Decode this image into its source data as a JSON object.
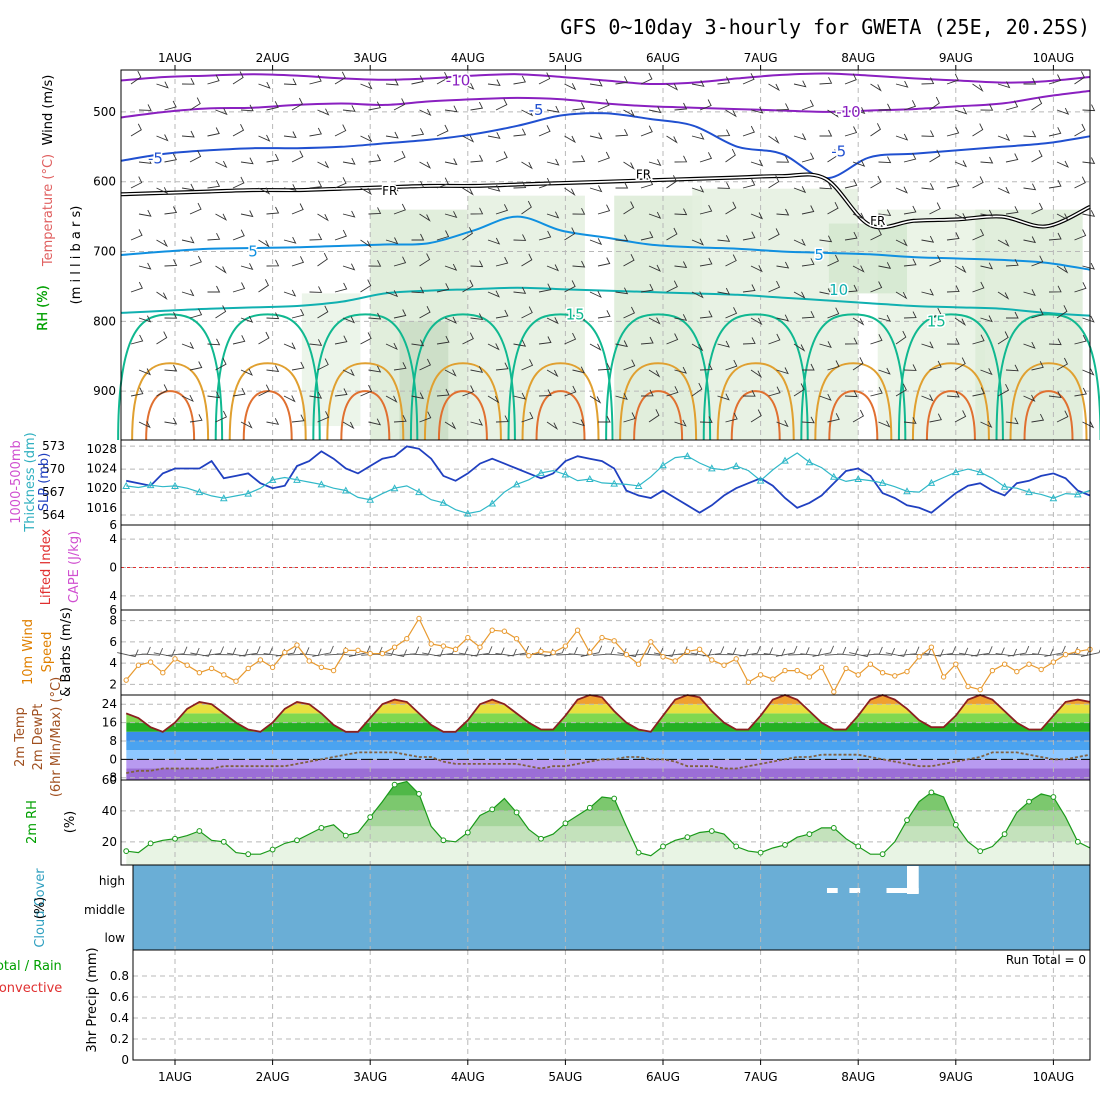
{
  "title": "GFS 0~10day 3-hourly for GWETA (25E, 20.25S)",
  "dates": [
    "1AUG",
    "2AUG",
    "3AUG",
    "4AUG",
    "5AUG",
    "6AUG",
    "7AUG",
    "8AUG",
    "9AUG",
    "10AUG"
  ],
  "panel_labels": {
    "upper": [
      {
        "text": "Wind (m/s)",
        "color": "#000000"
      },
      {
        "text": "Temperature (°C)",
        "color": "#e06060"
      },
      {
        "text": "(m i l l i b a r s)",
        "color": "#000000"
      },
      {
        "text": "RH (%)",
        "color": "#00a000"
      }
    ],
    "thickness": [
      {
        "text": "1000-500mb",
        "color": "#d050d0"
      },
      {
        "text": "Thickness (dm)",
        "color": "#30b0c0"
      },
      {
        "text": "SLP (mb)",
        "color": "#2040c0"
      }
    ],
    "cape": [
      {
        "text": "Lifted Index",
        "color": "#e03030"
      },
      {
        "text": "CAPE (J/kg)",
        "color": "#d050d0"
      }
    ],
    "wind10": [
      {
        "text": "10m Wind",
        "color": "#e08000"
      },
      {
        "text": "Speed",
        "color": "#e08000"
      },
      {
        "text": "& Barbs (m/s)",
        "color": "#000000"
      }
    ],
    "temp2m": [
      {
        "text": "2m Temp",
        "color": "#a05020"
      },
      {
        "text": "2m DewPt",
        "color": "#a05020"
      },
      {
        "text": "(6hr Min/Max) (°C)",
        "color": "#a05020"
      }
    ],
    "rh2m": [
      {
        "text": "2m RH",
        "color": "#00a000"
      },
      {
        "text": "(%)",
        "color": "#000000"
      }
    ],
    "cloud": [
      {
        "text": "Cloud Cover",
        "color": "#30a0c0"
      },
      {
        "text": "(%)",
        "color": "#000000"
      }
    ],
    "precip": [
      {
        "text": "Total / Rain",
        "color": "#00a000"
      },
      {
        "text": "Convective",
        "color": "#e03030"
      },
      {
        "text": "3hr Precip (mm)",
        "color": "#000000"
      }
    ]
  },
  "run_total_label": "Run Total = 0",
  "chart_data": [
    {
      "type": "contour",
      "name": "upper-air",
      "y_axis": "pressure (mb)",
      "yticks": [
        500,
        600,
        700,
        800,
        900
      ],
      "ylim": [
        440,
        970
      ],
      "contour_labels": [
        {
          "text": "-10",
          "day": 3.9,
          "p": 455,
          "color": "#8a20c0"
        },
        {
          "text": "-10",
          "day": 7.9,
          "p": 500,
          "color": "#8a20c0"
        },
        {
          "text": "-5",
          "day": 4.7,
          "p": 497,
          "color": "#2050d0"
        },
        {
          "text": "-5",
          "day": 0.8,
          "p": 567,
          "color": "#2050d0"
        },
        {
          "text": "-5",
          "day": 7.8,
          "p": 557,
          "color": "#2050d0"
        },
        {
          "text": "FR",
          "day": 3.2,
          "p": 612,
          "color": "#000000"
        },
        {
          "text": "FR",
          "day": 5.8,
          "p": 588,
          "color": "#000000"
        },
        {
          "text": "FR",
          "day": 8.2,
          "p": 655,
          "color": "#000000"
        },
        {
          "text": "5",
          "day": 1.8,
          "p": 700,
          "color": "#1090e0"
        },
        {
          "text": "5",
          "day": 7.6,
          "p": 705,
          "color": "#1090e0"
        },
        {
          "text": "10",
          "day": 7.8,
          "p": 755,
          "color": "#10b0b0"
        },
        {
          "text": "15",
          "day": 5.1,
          "p": 790,
          "color": "#10b890"
        },
        {
          "text": "15",
          "day": 8.8,
          "p": 800,
          "color": "#10b890"
        }
      ],
      "isotherms": [
        {
          "temp": -10,
          "color": "#8a20c0",
          "p": [
            455,
            450,
            448,
            446,
            448,
            452,
            454,
            452,
            448,
            446,
            450,
            455,
            460,
            458,
            452,
            447,
            445,
            448,
            452,
            455,
            458,
            456,
            450
          ]
        },
        {
          "temp": -10,
          "color": "#8a20c0",
          "p": [
            508,
            500,
            495,
            494,
            490,
            488,
            490,
            485,
            482,
            480,
            482,
            488,
            492,
            494,
            496,
            498,
            500,
            498,
            496,
            492,
            488,
            478,
            470
          ]
        },
        {
          "temp": -5,
          "color": "#2050d0",
          "p": [
            570,
            560,
            555,
            552,
            552,
            550,
            545,
            540,
            532,
            520,
            505,
            502,
            510,
            520,
            550,
            560,
            595,
            565,
            560,
            555,
            550,
            545,
            535
          ]
        },
        {
          "temp": 0,
          "color": "#000000",
          "p": [
            618,
            616,
            614,
            612,
            612,
            610,
            608,
            606,
            606,
            604,
            602,
            600,
            598,
            596,
            594,
            592,
            596,
            662,
            656,
            654,
            650,
            664,
            636
          ]
        },
        {
          "temp": 5,
          "color": "#1090e0",
          "p": [
            705,
            700,
            696,
            695,
            694,
            692,
            690,
            688,
            670,
            650,
            670,
            680,
            690,
            694,
            696,
            700,
            702,
            704,
            708,
            710,
            712,
            716,
            726
          ]
        },
        {
          "temp": 10,
          "color": "#10b0b0",
          "p": [
            788,
            785,
            782,
            780,
            778,
            772,
            760,
            756,
            754,
            752,
            754,
            756,
            758,
            760,
            762,
            766,
            770,
            774,
            778,
            780,
            782,
            788,
            792
          ]
        }
      ]
    },
    {
      "type": "line",
      "name": "slp-thickness",
      "left_axis": {
        "label": "1000-500mb Thickness (dm)",
        "ticks": [
          564,
          567,
          570,
          573
        ]
      },
      "right_axis": {
        "label": "SLP (mb)",
        "ticks": [
          1016,
          1020,
          1024,
          1028
        ]
      },
      "series": [
        {
          "name": "SLP (mb)",
          "color": "#2040c0",
          "axis": "right",
          "x_start_day": 0.5,
          "dx_day": 0.125,
          "values": [
            1021.5,
            1021,
            1020.5,
            1023,
            1024,
            1024,
            1024,
            1025.5,
            1022,
            1022.5,
            1023,
            1021,
            1020,
            1020.5,
            1024.5,
            1025.5,
            1027.5,
            1026,
            1024,
            1023,
            1024.5,
            1026,
            1026.5,
            1028.5,
            1028,
            1026,
            1022.5,
            1021.5,
            1023,
            1025,
            1026,
            1025,
            1024,
            1023,
            1022,
            1023,
            1025.5,
            1026.5,
            1026,
            1025.5,
            1024,
            1019.5,
            1018.5,
            1018,
            1019.5,
            1018,
            1016.5,
            1015,
            1016.5,
            1018.5,
            1020,
            1021,
            1022,
            1020.5,
            1018,
            1016,
            1017,
            1018.5,
            1021,
            1023.5,
            1024,
            1022.5,
            1019,
            1018,
            1016.5,
            1016,
            1015,
            1017,
            1019,
            1020.5,
            1021,
            1019.5,
            1018.5,
            1021,
            1021.5,
            1022.5,
            1023,
            1022,
            1019.5,
            1018.5,
            1016.5,
            1018.5,
            1020,
            1020.5,
            1021,
            1021.5,
            1022,
            1019.5,
            1018.5,
            1020.5,
            1021.5,
            1022.5,
            1023.5
          ]
        },
        {
          "name": "1000-500mb Thickness (dm)",
          "color": "#30b8c8",
          "axis": "left",
          "x_start_day": 0.5,
          "dx_day": 0.125,
          "values": [
            567.8,
            567.6,
            567.9,
            567.7,
            567.8,
            567.5,
            567,
            566.5,
            566.2,
            566.5,
            566.8,
            567.5,
            568.6,
            568.9,
            568.6,
            568.3,
            568,
            567.5,
            567.2,
            566.3,
            566,
            566.8,
            567.5,
            567.8,
            567,
            566,
            565.6,
            564.7,
            564.2,
            564.5,
            565.5,
            567,
            568,
            568.6,
            569.5,
            569.8,
            569.3,
            568.5,
            568.7,
            568.2,
            568.1,
            568,
            567.8,
            569,
            570.5,
            571.5,
            571.7,
            570.8,
            570.1,
            569.9,
            570.4,
            569.8,
            568.5,
            569.9,
            571.1,
            572.1,
            570.9,
            570.2,
            569,
            568.4,
            568.7,
            568.5,
            568.2,
            567.7,
            567.1,
            567,
            568.2,
            568.9,
            569.6,
            570,
            569.6,
            568.8,
            567.7,
            567.5,
            567,
            566.7,
            566.2,
            566.8,
            566.7,
            567.2,
            565.6,
            564.7,
            564.3,
            565.5,
            567,
            568.6,
            569.1,
            568.3,
            567.4,
            566.9,
            566.3,
            565.5,
            565.3,
            566.1
          ]
        }
      ]
    },
    {
      "type": "line",
      "name": "cape-lifted-index",
      "ylim": [
        6,
        -6
      ],
      "yticks": [
        -6,
        -4,
        0,
        4,
        6
      ],
      "series": [
        {
          "name": "Lifted Index reference",
          "color": "#e03030",
          "values": [
            0
          ]
        }
      ]
    },
    {
      "type": "line",
      "name": "10m-wind-speed",
      "ylim": [
        1,
        9
      ],
      "yticks": [
        2,
        4,
        6,
        8
      ],
      "ylabel": "m/s",
      "series": [
        {
          "name": "10m Wind Speed",
          "color": "#e89a30",
          "x_start_day": 0.5,
          "dx_day": 0.125,
          "values": [
            2.4,
            3.8,
            4.1,
            3.1,
            4.4,
            3.8,
            3.1,
            3.5,
            2.9,
            2.3,
            3.5,
            4.3,
            3.6,
            5,
            5.7,
            4.2,
            3.6,
            3.3,
            5.2,
            5.2,
            4.9,
            4.9,
            5.5,
            6.3,
            8.2,
            5.8,
            5.6,
            5.3,
            6.4,
            5.5,
            7.1,
            7,
            6.3,
            4.7,
            5.1,
            5,
            5.6,
            7.1,
            5,
            6.4,
            6.1,
            4.8,
            3.9,
            6,
            4.6,
            4.2,
            5.1,
            5.3,
            4.3,
            3.8,
            4.4,
            2.2,
            2.9,
            2.5,
            3.3,
            3.3,
            2.7,
            3.6,
            1.3,
            3.5,
            2.9,
            3.9,
            3.1,
            2.8,
            3.2,
            4.6,
            5.5,
            2.7,
            3.9,
            1.8,
            1.5,
            3.3,
            3.9,
            3.2,
            3.9,
            3.4,
            4.1,
            4.8,
            5.1,
            5.3,
            4.8,
            4.8,
            6.8,
            6.1,
            6.5,
            6.3,
            7.1,
            6.6,
            7.8,
            6.5,
            6.1,
            5.7,
            7.2,
            4.6,
            5.8,
            6.8,
            5.2,
            6.6,
            5.5,
            4.9,
            4.4,
            6.8,
            5.8,
            4.8,
            4.2,
            5.4,
            4.6
          ]
        }
      ]
    },
    {
      "type": "area",
      "name": "2m-temp-dewpoint",
      "ylim": [
        -9,
        28
      ],
      "yticks": [
        -8,
        0,
        8,
        16,
        24
      ],
      "ylabel": "°C",
      "series": [
        {
          "name": "2m Temp",
          "color": "#8a2020",
          "x_start_day": 0.5,
          "dx_day": 0.125,
          "values": [
            20,
            18,
            14,
            12,
            16,
            22,
            25,
            24,
            20,
            16,
            13,
            12,
            16,
            22,
            25,
            24,
            20,
            15,
            12,
            12,
            18,
            24,
            26,
            25,
            20,
            15,
            12,
            12,
            17,
            24,
            26,
            24,
            20,
            16,
            13,
            13,
            19,
            26,
            28,
            27,
            21,
            16,
            13,
            12,
            19,
            26,
            28,
            27,
            21,
            16,
            13,
            13,
            19,
            26,
            28,
            26,
            21,
            16,
            13,
            13,
            19,
            26,
            28,
            26,
            22,
            17,
            14,
            14,
            19,
            26,
            28,
            26,
            21,
            16,
            13,
            13,
            19,
            25,
            26,
            25,
            21,
            17,
            14,
            15
          ]
        },
        {
          "name": "2m DewPt",
          "color": "#806040",
          "x_start_day": 0.5,
          "dx_day": 0.125,
          "values": [
            -6,
            -5,
            -5,
            -4,
            -4,
            -4,
            -4,
            -4,
            -3,
            -3,
            -3,
            -3,
            -3,
            -3,
            -2,
            -1,
            0,
            1,
            2,
            3,
            3,
            3,
            3,
            2,
            1,
            1,
            -1,
            -2,
            -2,
            -2,
            -2,
            -2,
            -2,
            -3,
            -4,
            -3,
            -3,
            -2,
            -1,
            0,
            0,
            1,
            1,
            0,
            0,
            -1,
            -3,
            -3,
            -3,
            -4,
            -4,
            -3,
            -2,
            -1,
            0,
            1,
            1,
            2,
            2,
            2,
            2,
            1,
            0,
            -1,
            -2,
            -3,
            -3,
            -2,
            -1,
            0,
            1,
            3,
            3,
            3,
            2,
            1,
            0,
            0,
            1,
            2,
            2,
            2,
            2,
            2
          ]
        }
      ]
    },
    {
      "type": "area",
      "name": "2m-rh",
      "ylim": [
        5,
        60
      ],
      "yticks": [
        20,
        40,
        60
      ],
      "ylabel": "%",
      "series": [
        {
          "name": "2m RH",
          "color": "#1a9a1a",
          "x_start_day": 0.5,
          "dx_day": 0.125,
          "values": [
            14,
            13,
            19,
            21,
            22,
            24,
            27,
            21,
            20,
            13,
            12,
            12,
            15,
            19,
            21,
            25,
            29,
            31,
            24,
            26,
            36,
            46,
            57,
            59,
            51,
            30,
            21,
            20,
            26,
            37,
            41,
            48,
            39,
            28,
            22,
            25,
            32,
            37,
            42,
            49,
            48,
            30,
            13,
            11,
            17,
            21,
            23,
            26,
            27,
            25,
            17,
            14,
            13,
            16,
            18,
            23,
            25,
            29,
            29,
            22,
            17,
            12,
            12,
            20,
            34,
            46,
            52,
            49,
            31,
            20,
            14,
            17,
            25,
            39,
            46,
            51,
            49,
            36,
            20,
            16,
            22,
            33,
            47,
            55,
            57
          ]
        }
      ]
    },
    {
      "type": "heatmap",
      "name": "cloud-cover",
      "rows": [
        "high",
        "middle",
        "low"
      ],
      "base_color": "#6aaed6",
      "clear_patches": [
        {
          "row": "high",
          "from_day": 7.68,
          "to_day": 7.79
        },
        {
          "row": "high",
          "from_day": 7.91,
          "to_day": 8.02
        },
        {
          "row": "high",
          "from_day": 8.29,
          "to_day": 8.62
        },
        {
          "row": "high",
          "from_day": 8.5,
          "to_day": 8.62,
          "full": true
        }
      ]
    },
    {
      "type": "bar",
      "name": "3hr-precip",
      "ylim": [
        0,
        1
      ],
      "yticks": [
        0,
        0.2,
        0.4,
        0.6,
        0.8
      ],
      "ylabel": "mm",
      "series": [
        {
          "name": "Total / Rain",
          "color": "#00a000",
          "values": []
        },
        {
          "name": "Convective",
          "color": "#e03030",
          "values": []
        }
      ]
    }
  ]
}
